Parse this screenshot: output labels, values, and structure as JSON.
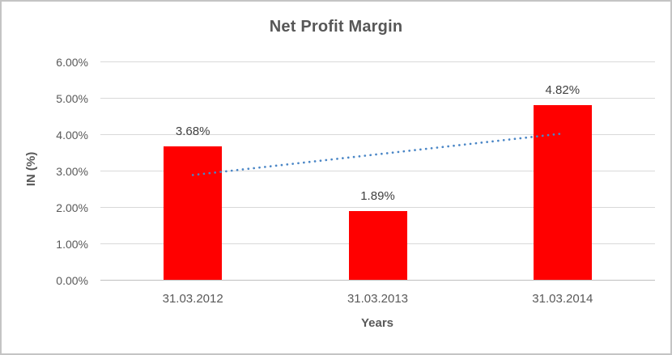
{
  "chart_data": {
    "type": "bar",
    "title": "Net Profit Margin",
    "categories": [
      "31.03.2012",
      "31.03.2013",
      "31.03.2014"
    ],
    "values": [
      3.68,
      1.89,
      4.82
    ],
    "data_labels": [
      "3.68%",
      "1.89%",
      "4.82%"
    ],
    "xlabel": "Years",
    "ylabel": "IN (%)",
    "ylim": [
      0,
      6
    ],
    "ytick_labels": [
      "0.00%",
      "1.00%",
      "2.00%",
      "3.00%",
      "4.00%",
      "5.00%",
      "6.00%"
    ],
    "grid": true,
    "legend": "none",
    "series_color": "#FF0000",
    "trendline": {
      "style": "dotted",
      "color": "#4A86C6",
      "start_value": 2.89,
      "end_value": 4.03
    },
    "colors": {
      "gridline": "#D9D9D9",
      "axis_line": "#BFBFBF",
      "tick_text": "#595959",
      "title_text": "#575757",
      "data_label_text": "#404040"
    }
  }
}
